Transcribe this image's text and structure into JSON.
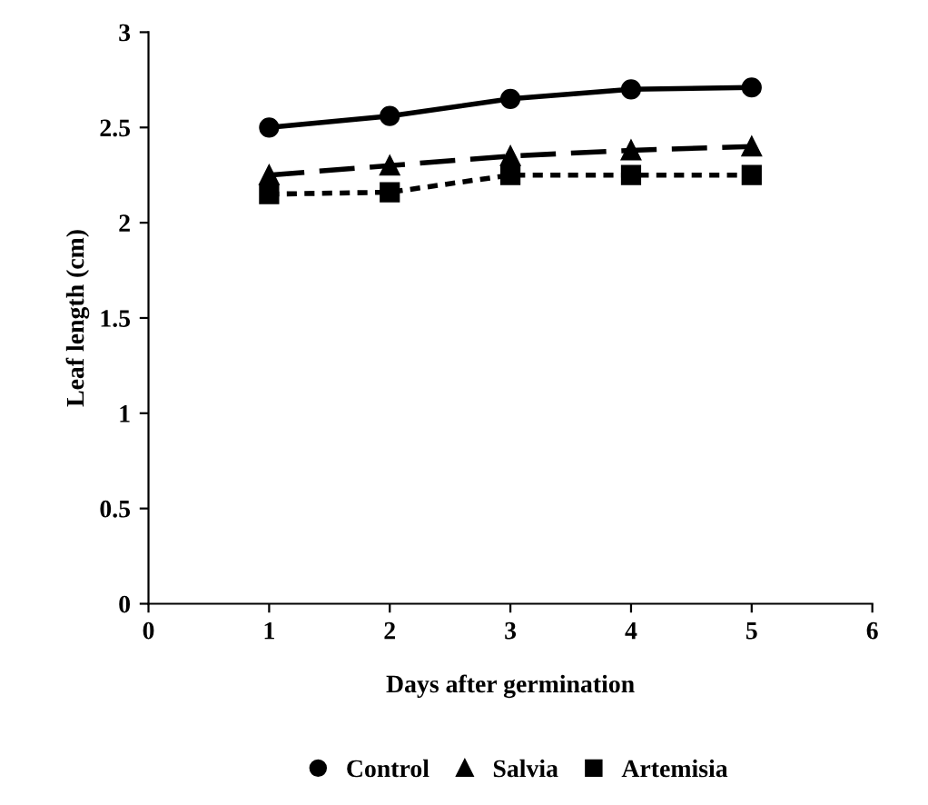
{
  "chart_data": {
    "type": "line",
    "xlabel": "Days after germination",
    "ylabel": "Leaf length (cm)",
    "x": [
      1,
      2,
      3,
      4,
      5
    ],
    "series": [
      {
        "name": "Control",
        "color": "#000000",
        "values": [
          2.5,
          2.56,
          2.65,
          2.7,
          2.71
        ],
        "marker": "circle",
        "line_style": "solid"
      },
      {
        "name": "Salvia",
        "color": "#000000",
        "values": [
          2.25,
          2.3,
          2.35,
          2.38,
          2.4
        ],
        "marker": "triangle",
        "line_style": "dashed"
      },
      {
        "name": "Artemisia",
        "color": "#000000",
        "values": [
          2.15,
          2.16,
          2.25,
          2.25,
          2.25
        ],
        "marker": "square",
        "line_style": "dotted"
      }
    ],
    "xlim": [
      0,
      6
    ],
    "xticks": [
      0,
      1,
      2,
      3,
      4,
      5,
      6
    ],
    "ylim": [
      0,
      3
    ],
    "yticks": [
      0,
      0.5,
      1,
      1.5,
      2,
      2.5,
      3
    ],
    "grid": false,
    "legend": "bottom"
  }
}
